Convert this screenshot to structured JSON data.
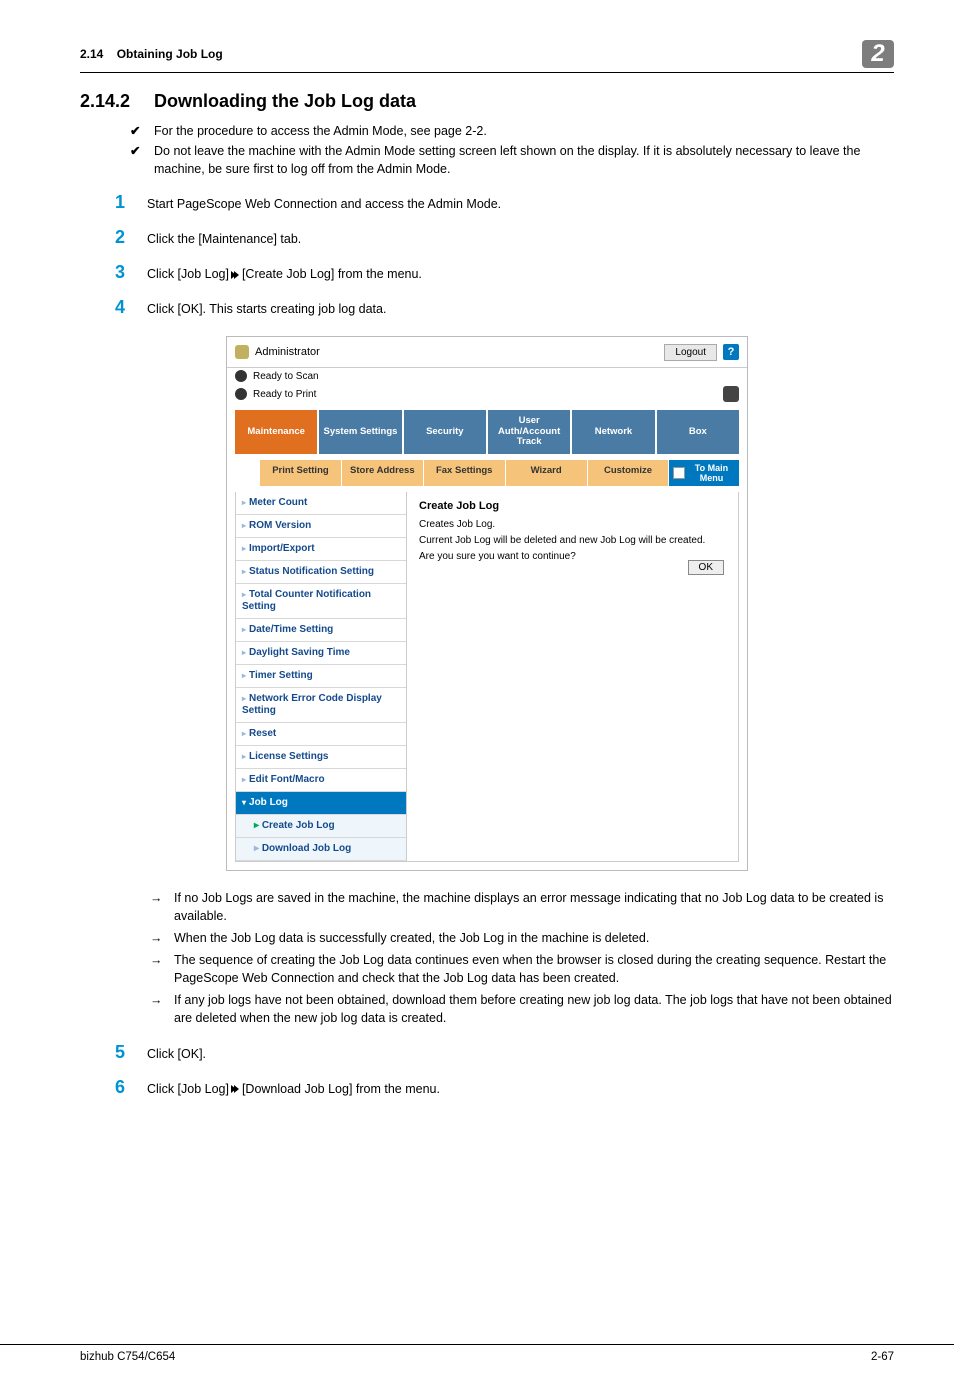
{
  "header": {
    "section_num": "2.14",
    "section_title": "Obtaining Job Log",
    "badge": "2"
  },
  "h2": {
    "num": "2.14.2",
    "title": "Downloading the Job Log data"
  },
  "notes": [
    "For the procedure to access the Admin Mode, see page 2-2.",
    "Do not leave the machine with the Admin Mode setting screen left shown on the display. If it is absolutely necessary to leave the machine, be sure first to log off from the Admin Mode."
  ],
  "steps": {
    "s1": "Start PageScope Web Connection and access the Admin Mode.",
    "s2": "Click the [Maintenance] tab.",
    "s3_a": "Click [Job Log] ",
    "s3_b": " [Create Job Log] from the menu.",
    "s4": "Click [OK]. This starts creating job log data."
  },
  "screenshot": {
    "admin_label": "Administrator",
    "logout": "Logout",
    "help": "?",
    "ready_scan": "Ready to Scan",
    "ready_print": "Ready to Print",
    "tabs": [
      "Maintenance",
      "System Settings",
      "Security",
      "User Auth/Account Track",
      "Network",
      "Box"
    ],
    "subtabs": [
      "Print Setting",
      "Store Address",
      "Fax Settings",
      "Wizard",
      "Customize"
    ],
    "to_main": "To Main Menu",
    "sidebar": [
      "Meter Count",
      "ROM Version",
      "Import/Export",
      "Status Notification Setting",
      "Total Counter Notification Setting",
      "Date/Time Setting",
      "Daylight Saving Time",
      "Timer Setting",
      "Network Error Code Display Setting",
      "Reset",
      "License Settings",
      "Edit Font/Macro"
    ],
    "sidebar_active": "Job Log",
    "sidebar_sub": [
      "Create Job Log",
      "Download Job Log"
    ],
    "panel_title": "Create Job Log",
    "panel_l1": "Creates Job Log.",
    "panel_l2": "Current Job Log will be deleted and new Job Log will be created.",
    "panel_l3": "Are you sure you want to continue?",
    "ok": "OK"
  },
  "sub_bullets": [
    "If no Job Logs are saved in the machine, the machine displays an error message indicating that no Job Log data to be created is available.",
    "When the Job Log data is successfully created, the Job Log in the machine is deleted.",
    "The sequence of creating the Job Log data continues even when the browser is closed during the creating sequence. Restart the PageScope Web Connection and check that the Job Log data has been created.",
    "If any job logs have not been obtained, download them before creating new job log data. The job logs that have not been obtained are deleted when the new job log data is created."
  ],
  "step5": "Click [OK].",
  "step6_a": "Click [Job Log] ",
  "step6_b": " [Download Job Log] from the menu.",
  "footer": {
    "left": "bizhub C754/C654",
    "right": "2-67"
  }
}
